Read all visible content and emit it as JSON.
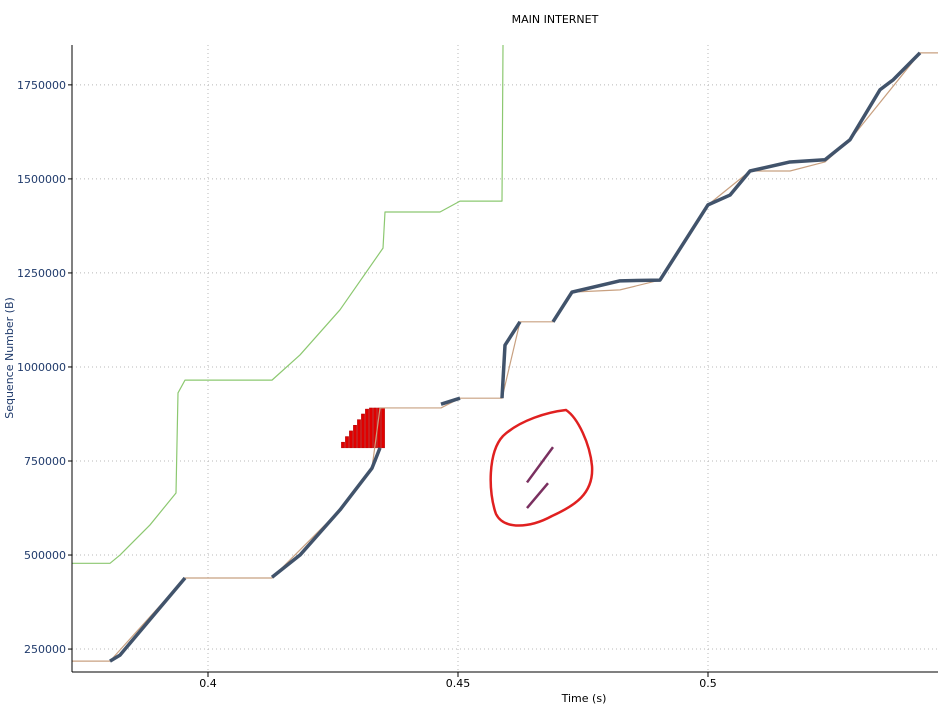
{
  "chart_data": {
    "type": "line",
    "title": "MAIN INTERNET",
    "x_label": "Time (s)",
    "y_label": "Sequence Number (B)",
    "xlim": [
      0.3728,
      0.546
    ],
    "ylim": [
      189000,
      1856000
    ],
    "xticks": [
      0.4,
      0.45,
      0.5
    ],
    "yticks": [
      250000,
      500000,
      750000,
      1000000,
      1250000,
      1500000,
      1750000
    ],
    "grid": true,
    "series": [
      {
        "color": "#8cc870",
        "x": [
          0.3728,
          0.3804,
          0.3824,
          0.3884,
          0.3936,
          0.394,
          0.3954,
          0.4128,
          0.4184,
          0.4264,
          0.435,
          0.4354,
          0.4464,
          0.4504,
          0.4588,
          0.459
        ],
        "values": [
          478000,
          478000,
          500000,
          580000,
          665000,
          931000,
          965000,
          965000,
          1032000,
          1152000,
          1316000,
          1412000,
          1412000,
          1441000,
          1441000,
          1856000
        ]
      },
      {
        "color": "#c8a080",
        "x": [
          0.3728,
          0.3804,
          0.3954,
          0.4128,
          0.4264,
          0.4328,
          0.4344,
          0.4466,
          0.4504,
          0.4588,
          0.4624,
          0.469,
          0.4728,
          0.4824,
          0.4904,
          0.5,
          0.5084,
          0.5164,
          0.5234,
          0.5284,
          0.5424,
          0.546
        ],
        "values": [
          218000,
          218000,
          439000,
          439000,
          620000,
          731000,
          891000,
          891000,
          917000,
          917000,
          1120000,
          1120000,
          1199000,
          1205000,
          1231000,
          1431000,
          1521000,
          1521000,
          1545000,
          1604000,
          1835000,
          1835000
        ]
      },
      {
        "color": "#41536b",
        "x": [
          0.3804,
          0.3824,
          0.3954,
          0.404,
          0.4128,
          0.4184,
          0.4264,
          0.4328,
          0.4344,
          0.44,
          0.4466,
          0.4504,
          0.454,
          0.4588,
          0.4594,
          0.4624,
          0.466,
          0.469,
          0.4728,
          0.4824,
          0.4904,
          0.5,
          0.5044,
          0.5084,
          0.5164,
          0.5234,
          0.5284,
          0.5344,
          0.537,
          0.5424
        ],
        "values": [
          218000,
          234000,
          439000,
          null,
          441000,
          500000,
          620000,
          731000,
          785000,
          null,
          901000,
          917000,
          null,
          917000,
          1058000,
          1120000,
          null,
          1120000,
          1199000,
          1229000,
          1231000,
          1431000,
          1457000,
          1521000,
          1545000,
          1551000,
          1604000,
          1737000,
          1763000,
          1835000
        ]
      },
      {
        "color": "#7a3060",
        "x": [
          0.4638,
          0.469,
          0.4664,
          0.4638,
          0.468
        ],
        "values": [
          693000,
          787000,
          null,
          625000,
          691000
        ]
      }
    ],
    "sack": {
      "color": "#e00000",
      "x": [
        0.427,
        0.4278,
        0.4286,
        0.4294,
        0.4302,
        0.431,
        0.4318,
        0.4326,
        0.4334,
        0.4342,
        0.435
      ],
      "low": [
        785000,
        785000,
        785000,
        785000,
        785000,
        785000,
        785000,
        785000,
        785000,
        785000,
        785000
      ],
      "high": [
        800000,
        815000,
        830000,
        845000,
        860000,
        875000,
        888000,
        891000,
        891000,
        891000,
        891000
      ]
    }
  }
}
